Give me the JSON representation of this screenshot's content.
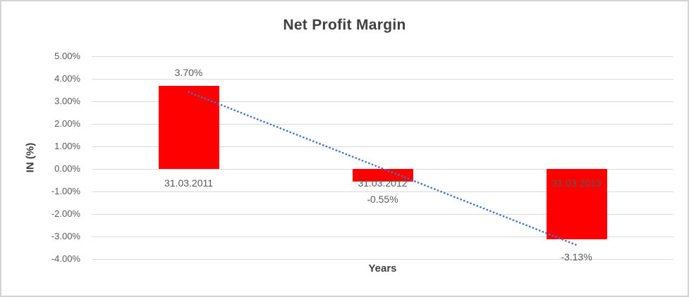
{
  "chart": {
    "title": "Net Profit Margin",
    "y_axis_title": "IN (%)",
    "x_axis_title": "Years"
  },
  "chart_data": {
    "type": "bar",
    "title": "Net Profit Margin",
    "xlabel": "Years",
    "ylabel": "IN (%)",
    "categories": [
      "31.03.2011",
      "31.03.2012",
      "31.03.2013"
    ],
    "values": [
      3.7,
      -0.55,
      -3.13
    ],
    "data_labels": [
      "3.70%",
      "-0.55%",
      "-3.13%"
    ],
    "y_ticks": [
      5,
      4,
      3,
      2,
      1,
      0,
      -1,
      -2,
      -3,
      -4
    ],
    "y_tick_labels": [
      "5.00%",
      "4.00%",
      "3.00%",
      "2.00%",
      "1.00%",
      "0.00%",
      "-1.00%",
      "-2.00%",
      "-3.00%",
      "-4.00%"
    ],
    "ylim": [
      -4,
      5
    ],
    "grid": true,
    "legend": false,
    "colors": {
      "bar": "#FF0000",
      "trendline": "#4472C4",
      "gridline": "#D9D9D9",
      "tick_label": "#595959",
      "title": "#404040"
    },
    "trendline": {
      "type": "linear",
      "style": "dotted",
      "start_value": 3.41,
      "end_value": -3.38
    }
  }
}
